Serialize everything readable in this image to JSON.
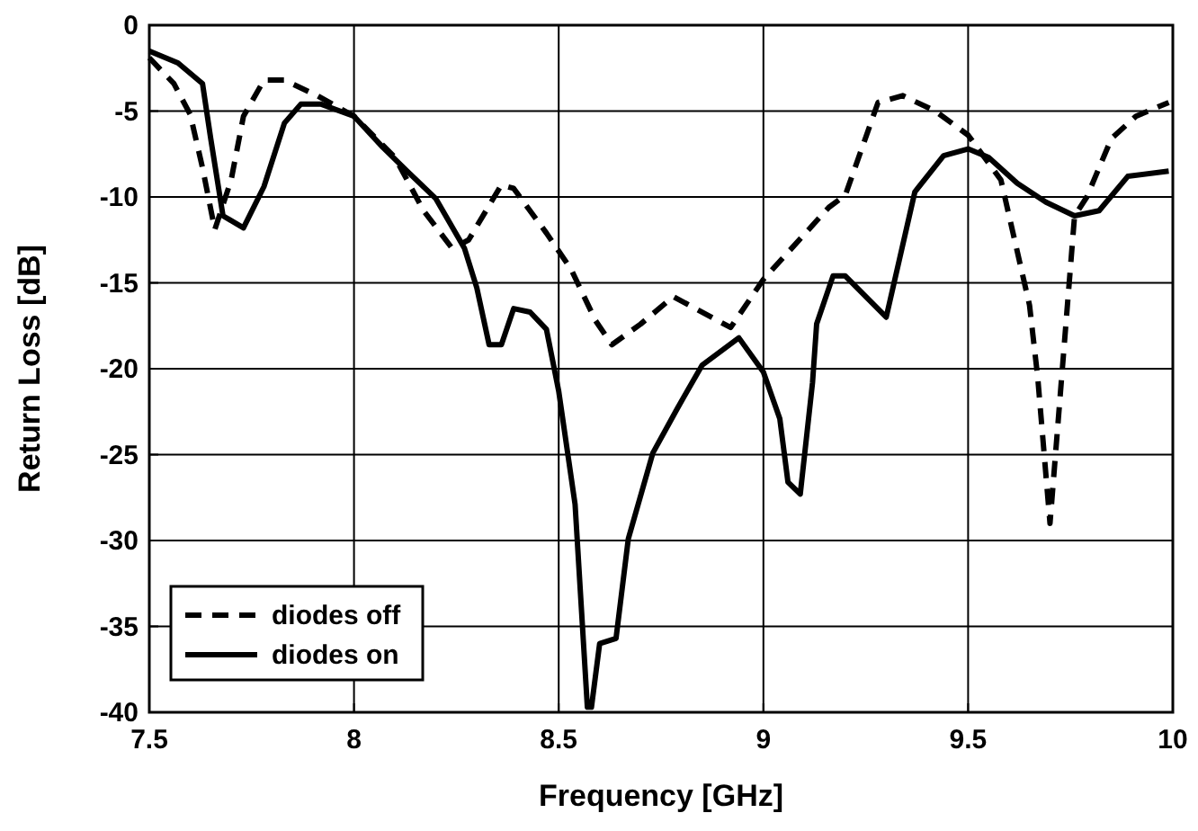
{
  "chart_data": {
    "type": "line",
    "xlabel": "Frequency [GHz]",
    "ylabel": "Return Loss [dB]",
    "xlim": [
      7.5,
      10
    ],
    "ylim": [
      -40,
      0
    ],
    "xticks": [
      7.5,
      8,
      8.5,
      9,
      9.5,
      10
    ],
    "yticks": [
      -40,
      -35,
      -30,
      -25,
      -20,
      -15,
      -10,
      -5,
      0
    ],
    "grid": true,
    "legend": "bottom left",
    "marker": "none",
    "series": [
      {
        "name": "diodes off",
        "color": "#000000",
        "line_style": "dashed",
        "x": [
          7.5,
          7.56,
          7.6,
          7.63,
          7.66,
          7.7,
          7.73,
          7.78,
          7.83,
          7.91,
          8.0,
          8.1,
          8.17,
          8.24,
          8.28,
          8.36,
          8.39,
          8.47,
          8.53,
          8.59,
          8.63,
          8.7,
          8.78,
          8.92,
          9.0,
          9.16,
          9.2,
          9.28,
          9.34,
          9.42,
          9.5,
          9.58,
          9.65,
          9.67,
          9.7,
          9.76,
          9.79,
          9.85,
          9.91,
          9.99
        ],
        "values": [
          -1.9,
          -3.4,
          -5.2,
          -8.3,
          -11.9,
          -9,
          -5.3,
          -3.2,
          -3.2,
          -4.1,
          -5.3,
          -7.7,
          -10.8,
          -13,
          -12.5,
          -9.3,
          -9.5,
          -12.1,
          -14.2,
          -17.2,
          -18.6,
          -17.4,
          -15.8,
          -17.6,
          -14.8,
          -10.6,
          -9.9,
          -4.5,
          -4.1,
          -5,
          -6.4,
          -9,
          -16.3,
          -20.5,
          -29,
          -11.1,
          -10,
          -6.6,
          -5.3,
          -4.5
        ]
      },
      {
        "name": "diodes on",
        "color": "#000000",
        "line_style": "solid",
        "x": [
          7.5,
          7.57,
          7.63,
          7.65,
          7.68,
          7.73,
          7.78,
          7.83,
          7.87,
          7.92,
          8.0,
          8.07,
          8.13,
          8.2,
          8.27,
          8.3,
          8.33,
          8.36,
          8.39,
          8.43,
          8.47,
          8.5,
          8.54,
          8.57,
          8.58,
          8.6,
          8.64,
          8.67,
          8.73,
          8.79,
          8.85,
          8.94,
          9.0,
          9.04,
          9.06,
          9.09,
          9.12,
          9.13,
          9.17,
          9.2,
          9.3,
          9.37,
          9.44,
          9.5,
          9.55,
          9.62,
          9.69,
          9.76,
          9.82,
          9.89,
          9.99
        ],
        "values": [
          -1.5,
          -2.2,
          -3.4,
          -6.6,
          -11.1,
          -11.8,
          -9.4,
          -5.7,
          -4.6,
          -4.6,
          -5.3,
          -7.1,
          -8.5,
          -10.1,
          -13,
          -15.3,
          -18.6,
          -18.6,
          -16.5,
          -16.7,
          -17.7,
          -21.3,
          -27.9,
          -39.7,
          -39.7,
          -36,
          -35.7,
          -29.9,
          -24.9,
          -22.3,
          -19.8,
          -18.2,
          -20.2,
          -22.9,
          -26.6,
          -27.3,
          -20.8,
          -17.4,
          -14.6,
          -14.6,
          -17,
          -9.7,
          -7.6,
          -7.2,
          -7.7,
          -9.2,
          -10.3,
          -11.1,
          -10.8,
          -8.8,
          -8.5
        ]
      }
    ]
  }
}
